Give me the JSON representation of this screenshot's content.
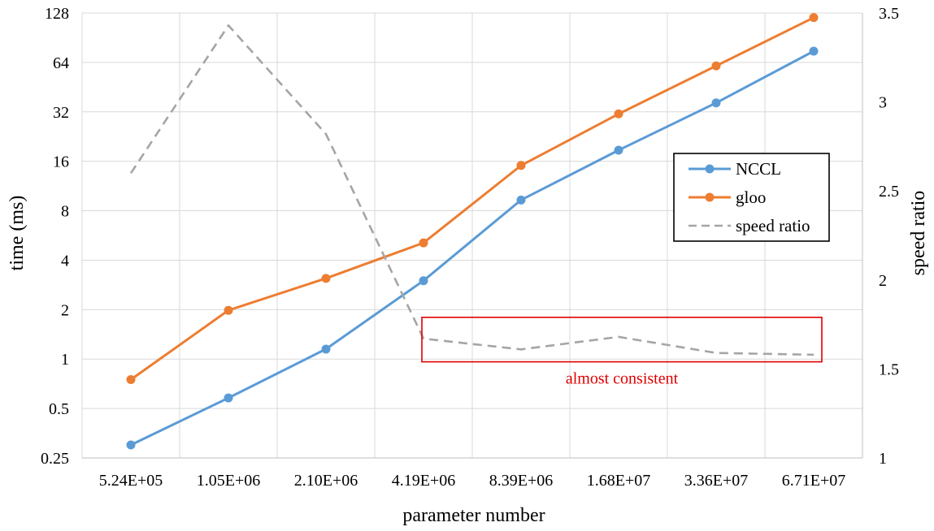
{
  "chart_data": {
    "type": "line",
    "categories": [
      "5.24E+05",
      "1.05E+06",
      "2.10E+06",
      "4.19E+06",
      "8.39E+06",
      "1.68E+07",
      "3.36E+07",
      "6.71E+07"
    ],
    "xlabel": "parameter number",
    "ylabel": "time (ms)",
    "y2label": "speed ratio",
    "y_scale": "log2",
    "ylim": [
      0.25,
      128
    ],
    "y_ticks": [
      "0.25",
      "0.5",
      "1",
      "2",
      "4",
      "8",
      "16",
      "32",
      "64",
      "128"
    ],
    "y2lim": [
      1,
      3.5
    ],
    "y2_ticks": [
      "1",
      "1.5",
      "2",
      "2.5",
      "3",
      "3.5"
    ],
    "grid": true,
    "legend_position": "right",
    "series": [
      {
        "name": "NCCL",
        "axis": "left",
        "color": "#5B9BD5",
        "style": "solid-marker",
        "values": [
          0.3,
          0.58,
          1.15,
          3.0,
          9.3,
          18.7,
          36.3,
          75.0
        ]
      },
      {
        "name": "gloo",
        "axis": "left",
        "color": "#ED7D31",
        "style": "solid-marker",
        "values": [
          0.75,
          1.98,
          3.1,
          5.1,
          15.1,
          31.1,
          61.0,
          120.0
        ]
      },
      {
        "name": "speed ratio",
        "axis": "right",
        "color": "#A5A5A5",
        "style": "dashed",
        "values": [
          2.6,
          3.43,
          2.82,
          1.67,
          1.61,
          1.68,
          1.59,
          1.58
        ]
      }
    ],
    "annotation": {
      "text": "almost consistent",
      "color": "#E00000",
      "category_range": [
        "4.19E+06",
        "6.71E+07"
      ]
    }
  }
}
